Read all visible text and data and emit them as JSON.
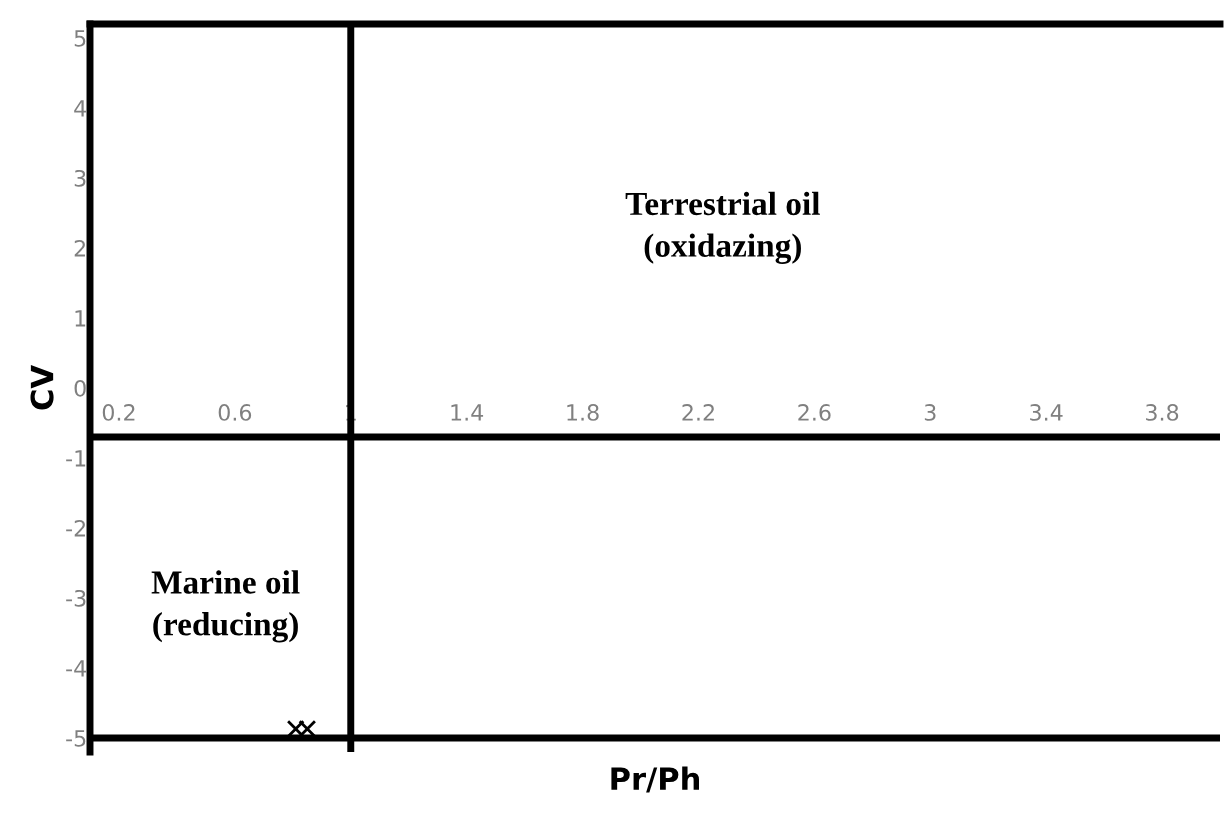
{
  "chart_data": {
    "type": "scatter",
    "xlabel": "Pr/Ph",
    "ylabel": "CV",
    "x": [
      0.81,
      0.85
    ],
    "series": [
      {
        "color": "#000000",
        "values": [
          -4.87,
          -4.87
        ]
      }
    ],
    "marker": "cross",
    "xlim": [
      0.1,
      4.0
    ],
    "ylim": [
      -5.2,
      5.2
    ],
    "xticks": [
      0.2,
      0.6,
      1,
      1.4,
      1.8,
      2.2,
      2.6,
      3,
      3.4,
      3.8
    ],
    "yticks": [
      -5,
      -4,
      -3,
      -2,
      -1,
      0,
      1,
      2,
      3,
      4,
      5
    ],
    "ref_lines": [
      {
        "axis": "x",
        "value": 1,
        "color": "#000000"
      },
      {
        "axis": "y",
        "value": -0.7,
        "color": "#000000"
      },
      {
        "axis": "y",
        "value": -5,
        "color": "#000000"
      }
    ],
    "annotations": [
      "Terrestrial oil\n(oxidazing)",
      "Marine oil\n(reducing)"
    ],
    "grid": false
  }
}
